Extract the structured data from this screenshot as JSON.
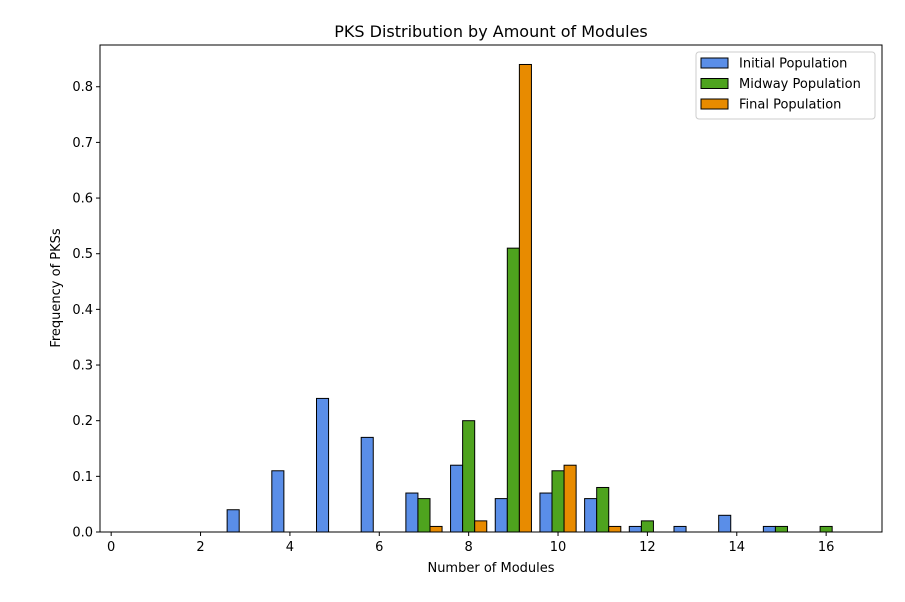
{
  "chart_data": {
    "type": "bar",
    "title": "PKS Distribution by Amount of Modules",
    "xlabel": "Number of Modules",
    "ylabel": "Frequency of PKSs",
    "xlim": [
      -0.25,
      17.25
    ],
    "ylim": [
      0,
      0.875
    ],
    "x_ticks": [
      0,
      2,
      4,
      6,
      8,
      10,
      12,
      14,
      16
    ],
    "y_ticks": [
      0.0,
      0.1,
      0.2,
      0.3,
      0.4,
      0.5,
      0.6,
      0.7,
      0.8
    ],
    "grid": false,
    "legend_position": "top-right",
    "bar_width": 0.27,
    "x": [
      1,
      2,
      3,
      4,
      5,
      6,
      7,
      8,
      9,
      10,
      11,
      12,
      13,
      14,
      15,
      16
    ],
    "series": [
      {
        "name": "Initial Population",
        "color": "#5a8ee8",
        "values": [
          0,
          0,
          0.04,
          0.11,
          0.24,
          0.17,
          0.07,
          0.12,
          0.06,
          0.07,
          0.06,
          0.01,
          0.01,
          0.03,
          0.01,
          0
        ]
      },
      {
        "name": "Midway Population",
        "color": "#4ea31e",
        "values": [
          0,
          0,
          0,
          0,
          0,
          0,
          0.06,
          0.2,
          0.51,
          0.11,
          0.08,
          0.02,
          0,
          0,
          0.01,
          0.01
        ]
      },
      {
        "name": "Final Population",
        "color": "#e88b00",
        "values": [
          0,
          0,
          0,
          0,
          0,
          0,
          0.01,
          0.02,
          0.84,
          0.12,
          0.01,
          0,
          0,
          0,
          0,
          0
        ]
      }
    ]
  }
}
